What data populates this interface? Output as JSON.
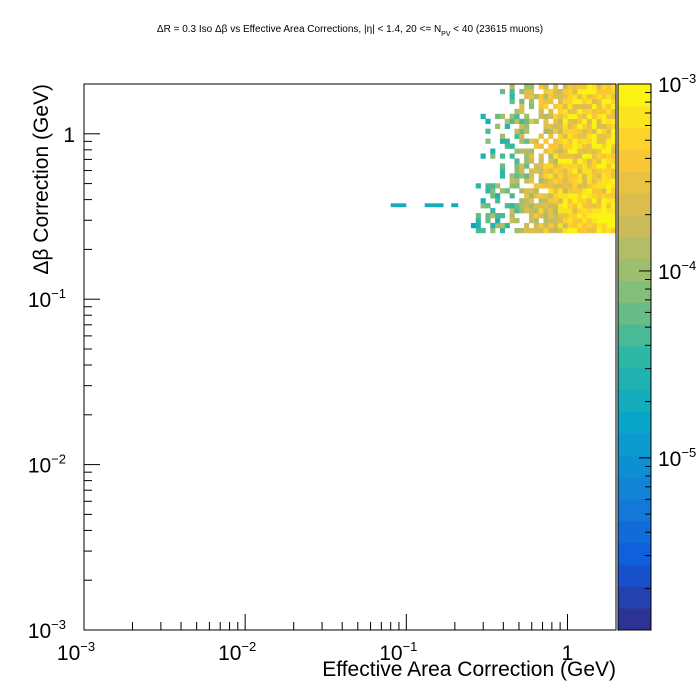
{
  "title": {
    "prefix": "ΔR = 0.3 Iso Δβ vs Effective Area Corrections, |η| < 1.4, 20 <= N",
    "subscript": "PV",
    "suffix": " < 40 (23615 muons)"
  },
  "chart_data": {
    "type": "heatmap",
    "title": "ΔR = 0.3 Iso Δβ vs Effective Area Corrections, |η| < 1.4, 20 <= N_PV < 40 (23615 muons)",
    "xlabel": "Effective Area Correction (GeV)",
    "ylabel": "Δβ Correction (GeV)",
    "x_scale": "log",
    "y_scale": "log",
    "xlim": [
      0.001,
      2.0
    ],
    "ylim": [
      0.001,
      2.0
    ],
    "zlim": [
      1.2e-06,
      0.001
    ],
    "z_scale": "log",
    "x_ticks": [
      {
        "base": "10",
        "exp": "−3",
        "value": 0.001
      },
      {
        "base": "10",
        "exp": "−2",
        "value": 0.01
      },
      {
        "base": "10",
        "exp": "−1",
        "value": 0.1
      },
      {
        "base": "1",
        "exp": "",
        "value": 1
      }
    ],
    "y_ticks": [
      {
        "base": "10",
        "exp": "−3",
        "value": 0.001
      },
      {
        "base": "10",
        "exp": "−2",
        "value": 0.01
      },
      {
        "base": "10",
        "exp": "−1",
        "value": 0.1
      },
      {
        "base": "1",
        "exp": "",
        "value": 1
      }
    ],
    "z_ticks": [
      {
        "base": "10",
        "exp": "−5",
        "value": 1e-05
      },
      {
        "base": "10",
        "exp": "−4",
        "value": 0.0001
      },
      {
        "base": "10",
        "exp": "−3",
        "value": 0.001
      }
    ],
    "regions": [
      {
        "x": [
          0.23,
          2.0
        ],
        "y": [
          0.24,
          2.0
        ],
        "level": "mid",
        "note": "populated region, density increasing toward upper right"
      },
      {
        "x": [
          0.4,
          1.8
        ],
        "y": [
          0.25,
          0.45
        ],
        "level": "high",
        "note": "dense yellow core near y ~ 0.3"
      },
      {
        "x": [
          0.5,
          1.5
        ],
        "y": [
          0.6,
          1.9
        ],
        "level": "high",
        "note": "dense core near x ~ 1"
      }
    ],
    "isolated_bins": [
      {
        "x": [
          0.08,
          0.1
        ],
        "y": [
          0.36,
          0.38
        ],
        "z": 2e-05
      },
      {
        "x": [
          0.13,
          0.17
        ],
        "y": [
          0.36,
          0.38
        ],
        "z": 2e-05
      },
      {
        "x": [
          0.19,
          0.21
        ],
        "y": [
          0.36,
          0.38
        ],
        "z": 2e-05
      }
    ],
    "palette": [
      "#352a87",
      "#0f5cdd",
      "#1481d6",
      "#06a4ca",
      "#2eb7a4",
      "#87bf77",
      "#d1bb59",
      "#fec832",
      "#f9fb0e"
    ]
  }
}
